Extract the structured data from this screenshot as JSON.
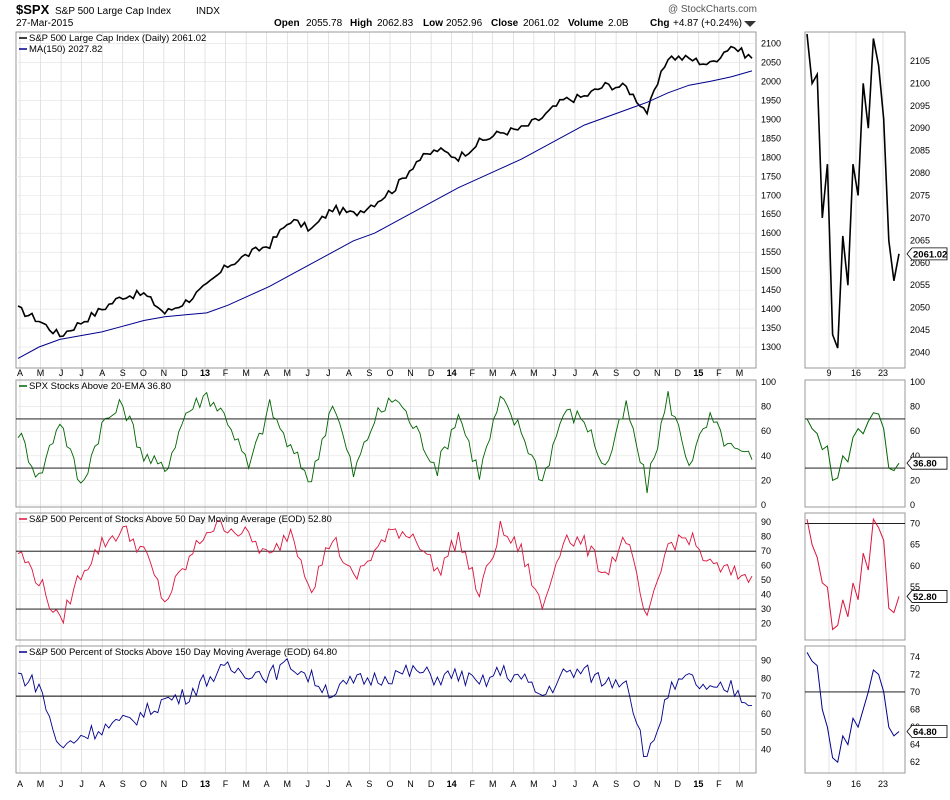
{
  "header": {
    "symbol": "$SPX",
    "name": "S&P 500 Large Cap Index",
    "exchange": "INDX",
    "date": "27-Mar-2015",
    "watermark": "@ StockCharts.com",
    "quote": {
      "open_label": "Open",
      "open": "2055.78",
      "high_label": "High",
      "high": "2062.83",
      "low_label": "Low",
      "low": "2052.96",
      "close_label": "Close",
      "close": "2061.02",
      "volume_label": "Volume",
      "volume": "2.0B",
      "chg_label": "Chg",
      "chg": "+4.87 (+0.24%)"
    }
  },
  "x_labels": [
    "A",
    "M",
    "J",
    "J",
    "A",
    "S",
    "O",
    "N",
    "D",
    "13",
    "F",
    "M",
    "A",
    "M",
    "J",
    "J",
    "A",
    "S",
    "O",
    "N",
    "D",
    "14",
    "F",
    "M",
    "A",
    "M",
    "J",
    "J",
    "A",
    "S",
    "O",
    "N",
    "D",
    "15",
    "F",
    "M"
  ],
  "zoom_x_labels": [
    "9",
    "16",
    "23"
  ],
  "colors": {
    "price": "#000000",
    "ma": "#00008b",
    "ema20": "#006400",
    "ma50": "#dc143c",
    "ma150": "#00008b"
  },
  "chart_data": [
    {
      "id": "price",
      "type": "line",
      "legend": [
        "S&P 500 Large Cap Index (Daily) 2061.02",
        "MA(150) 2027.82"
      ],
      "ylim": [
        1250,
        2125
      ],
      "y_ticks": [
        1300,
        1350,
        1400,
        1450,
        1500,
        1550,
        1600,
        1650,
        1700,
        1750,
        1800,
        1850,
        1900,
        1950,
        2000,
        2050,
        2100
      ],
      "x": [
        "2012-04",
        "2012-05",
        "2012-06",
        "2012-07",
        "2012-08",
        "2012-09",
        "2012-10",
        "2012-11",
        "2012-12",
        "2013-01",
        "2013-02",
        "2013-03",
        "2013-04",
        "2013-05",
        "2013-06",
        "2013-07",
        "2013-08",
        "2013-09",
        "2013-10",
        "2013-11",
        "2013-12",
        "2014-01",
        "2014-02",
        "2014-03",
        "2014-04",
        "2014-05",
        "2014-06",
        "2014-07",
        "2014-08",
        "2014-09",
        "2014-10",
        "2014-11",
        "2014-12",
        "2015-01",
        "2015-02",
        "2015-03"
      ],
      "series": [
        {
          "name": "S&P 500 Large Cap Index (Daily)",
          "values": [
            1400,
            1370,
            1330,
            1365,
            1400,
            1435,
            1440,
            1390,
            1420,
            1460,
            1515,
            1545,
            1570,
            1635,
            1610,
            1665,
            1650,
            1680,
            1720,
            1790,
            1820,
            1800,
            1840,
            1865,
            1875,
            1905,
            1950,
            1960,
            1990,
            1985,
            1920,
            2065,
            2060,
            2045,
            2095,
            2061
          ]
        },
        {
          "name": "MA(150)",
          "values": [
            1270,
            1300,
            1320,
            1330,
            1340,
            1355,
            1370,
            1380,
            1385,
            1390,
            1410,
            1435,
            1460,
            1490,
            1520,
            1550,
            1580,
            1600,
            1630,
            1660,
            1690,
            1720,
            1745,
            1770,
            1795,
            1825,
            1855,
            1885,
            1905,
            1925,
            1945,
            1970,
            1990,
            2000,
            2012,
            2027.82
          ]
        }
      ],
      "zoom": {
        "ylim": [
          2037,
          2111
        ],
        "y_ticks": [
          2040,
          2045,
          2050,
          2055,
          2060,
          2065,
          2070,
          2075,
          2080,
          2085,
          2090,
          2095,
          2100,
          2105
        ],
        "last_value": "2061.02",
        "values": [
          2111,
          2100,
          2102,
          2070,
          2082,
          2044,
          2041,
          2066,
          2055,
          2082,
          2075,
          2100,
          2090,
          2110,
          2104,
          2092,
          2065,
          2056,
          2062
        ]
      }
    },
    {
      "id": "ema20",
      "type": "line",
      "legend": [
        "SPX Stocks Above 20-EMA 36.80"
      ],
      "ylim": [
        0,
        100
      ],
      "y_ticks": [
        0,
        20,
        40,
        60,
        80,
        100
      ],
      "ref_lines": [
        30,
        70
      ],
      "series": [
        {
          "name": "SPX Stocks Above 20-EMA",
          "values": [
            60,
            22,
            70,
            15,
            65,
            82,
            40,
            28,
            75,
            90,
            70,
            30,
            80,
            45,
            20,
            85,
            25,
            70,
            88,
            60,
            30,
            75,
            25,
            85,
            60,
            20,
            75,
            70,
            30,
            80,
            15,
            88,
            35,
            70,
            45,
            36.8
          ]
        }
      ],
      "zoom": {
        "ylim": [
          0,
          100
        ],
        "y_ticks": [
          0,
          20,
          40,
          60,
          80,
          100
        ],
        "ref_lines": [
          30,
          70
        ],
        "last_value": "36.80",
        "values": [
          70,
          62,
          58,
          45,
          48,
          20,
          22,
          40,
          35,
          55,
          62,
          58,
          68,
          75,
          74,
          62,
          30,
          28,
          34
        ]
      }
    },
    {
      "id": "ma50",
      "type": "line",
      "legend": [
        "S&P 500 Percent of Stocks Above 50 Day Moving Average (EOD) 52.80"
      ],
      "ylim": [
        10,
        95
      ],
      "y_ticks": [
        20,
        30,
        40,
        50,
        60,
        70,
        80,
        90
      ],
      "ref_lines": [
        30,
        70
      ],
      "series": [
        {
          "name": "S&P 500 Percent of Stocks Above 50 Day Moving Average (EOD)",
          "values": [
            70,
            50,
            20,
            55,
            75,
            85,
            70,
            35,
            60,
            85,
            88,
            80,
            65,
            85,
            45,
            80,
            50,
            70,
            85,
            80,
            55,
            80,
            40,
            85,
            70,
            30,
            80,
            75,
            55,
            80,
            20,
            75,
            80,
            60,
            55,
            52.8
          ]
        }
      ],
      "zoom": {
        "ylim": [
          43,
          72
        ],
        "y_ticks": [
          50,
          55,
          60,
          65,
          70
        ],
        "ref_lines": [
          70
        ],
        "last_value": "52.80",
        "values": [
          71,
          65,
          62,
          56,
          55,
          45,
          46,
          52,
          48,
          56,
          52,
          63,
          59,
          71,
          69,
          66,
          50,
          49,
          52.8
        ]
      }
    },
    {
      "id": "ma150",
      "type": "line",
      "legend": [
        "S&P 500 Percent of Stocks Above 150 Day Moving Average (EOD) 64.80"
      ],
      "ylim": [
        28,
        97
      ],
      "y_ticks": [
        40,
        50,
        60,
        70,
        80,
        90
      ],
      "ref_lines": [
        70
      ],
      "series": [
        {
          "name": "S&P 500 Percent of Stocks Above 150 Day Moving Average (EOD)",
          "values": [
            82,
            76,
            40,
            48,
            52,
            55,
            60,
            68,
            70,
            80,
            85,
            84,
            82,
            88,
            80,
            72,
            78,
            80,
            82,
            84,
            80,
            82,
            76,
            84,
            80,
            70,
            82,
            84,
            78,
            80,
            33,
            72,
            80,
            72,
            75,
            64.8
          ]
        }
      ],
      "zoom": {
        "ylim": [
          61,
          75
        ],
        "y_ticks": [
          62,
          64,
          66,
          68,
          70,
          72,
          74
        ],
        "ref_lines": [
          70
        ],
        "last_value": "64.80",
        "values": [
          74.5,
          73.5,
          73,
          68,
          66,
          62.5,
          62,
          65,
          64,
          67,
          66,
          68,
          70,
          72.5,
          72,
          70,
          66,
          65,
          65.5
        ]
      }
    }
  ]
}
